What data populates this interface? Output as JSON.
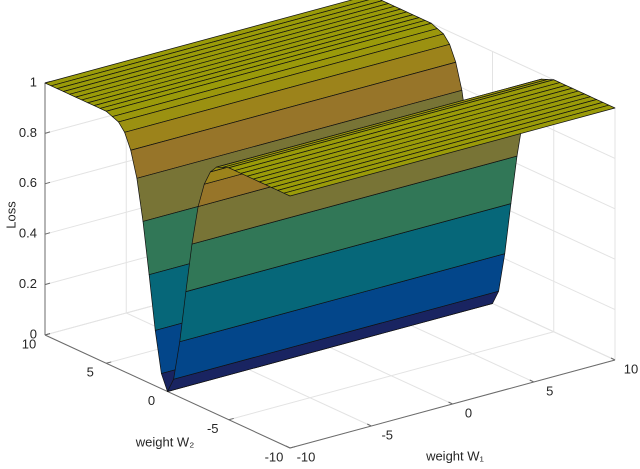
{
  "chart_data": {
    "type": "surface",
    "zlabel": "Loss",
    "xlabel": "weight W₁",
    "ylabel": "weight W₂",
    "xlim": [
      -10,
      10
    ],
    "xticks": [
      -10,
      -5,
      0,
      5,
      10
    ],
    "ylim": [
      -10,
      10
    ],
    "yticks": [
      -10,
      -5,
      0,
      5,
      10
    ],
    "zlim": [
      0,
      1
    ],
    "zticks": [
      0,
      0.2,
      0.4,
      0.6,
      0.8,
      1
    ],
    "y": [
      -10,
      -9.5,
      -9,
      -8.5,
      -8,
      -7.5,
      -7,
      -6.5,
      -6,
      -5.5,
      -5,
      -4.5,
      -4,
      -3.5,
      -3,
      -2.5,
      -2,
      -1.5,
      -1,
      -0.5,
      0,
      0.5,
      1,
      1.5,
      2,
      2.5,
      3,
      3.5,
      4,
      4.5,
      5,
      5.5,
      6,
      6.5,
      7,
      7.5,
      8,
      8.5,
      9,
      9.5,
      10
    ],
    "z": [
      1,
      1,
      1,
      1,
      1,
      1,
      1,
      1,
      1,
      1,
      1,
      0.99,
      0.98,
      0.95,
      0.89,
      0.79,
      0.63,
      0.43,
      0.22,
      0.06,
      0,
      0.06,
      0.22,
      0.43,
      0.63,
      0.79,
      0.89,
      0.95,
      0.98,
      0.99,
      1,
      1,
      1,
      1,
      1,
      1,
      1,
      1,
      1,
      1,
      1
    ],
    "colormap": "parula",
    "grid": true
  }
}
